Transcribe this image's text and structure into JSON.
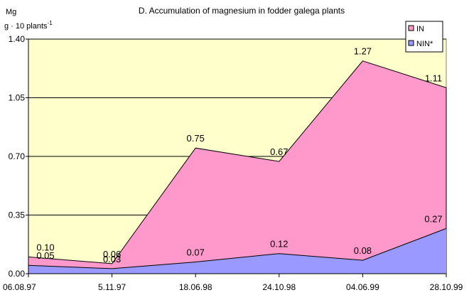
{
  "chart_data": {
    "type": "area",
    "title": "D. Accumulation of magnesium in  fodder galega plants",
    "ylabel": {
      "line1": "Mg",
      "line2_main": "g · 10 plants",
      "line2_sup": "-1"
    },
    "categories": [
      "06.08.97",
      "5.11.97",
      "18.06.98",
      "24.10.98",
      "04.06.99",
      "28.10.99"
    ],
    "ylim": [
      0,
      1.4
    ],
    "yticks": [
      "0.00",
      "0.35",
      "0.70",
      "1.05",
      "1.40"
    ],
    "grid": true,
    "legend_position": "top-right",
    "colors": {
      "plot_background": "#ffffcc",
      "IN": "#ff99cc",
      "NIN": "#9999ff",
      "grid": "#000000"
    },
    "series": [
      {
        "name": "IN",
        "values": [
          0.1,
          0.06,
          0.75,
          0.67,
          1.27,
          1.11
        ],
        "labels": [
          "0.10",
          "0.06",
          "0.75",
          "0.67",
          "1.27",
          "1.11"
        ]
      },
      {
        "name": "NIN*",
        "values": [
          0.05,
          0.03,
          0.07,
          0.12,
          0.08,
          0.27
        ],
        "labels": [
          "0.05",
          "0.03",
          "0.07",
          "0.12",
          "0.08",
          "0.27"
        ]
      }
    ]
  }
}
